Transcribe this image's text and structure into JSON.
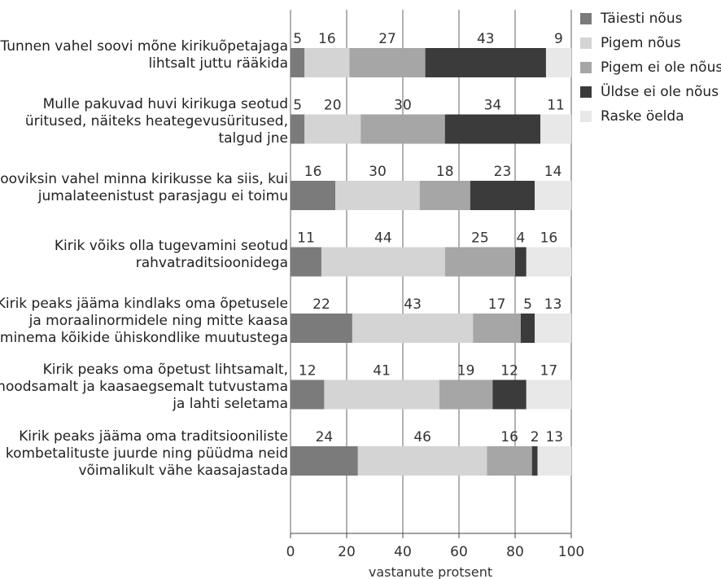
{
  "chart_data": {
    "type": "bar",
    "orientation": "horizontal",
    "stacked": true,
    "categories": [
      "Tunnen vahel soovi mõne kirikuõpetajaga\nlihtsalt juttu rääkida",
      "Mulle pakuvad huvi kirikuga seotud\nüritused, näiteks heategevusüritused,\ntalgud jne",
      "Sooviksin vahel minna kirikusse ka siis, kui\njumalateenistust parasjagu ei toimu",
      "Kirik võiks olla tugevamini seotud\nrahvatraditsioonidega",
      "Kirik peaks jääma kindlaks oma õpetusele\nja moraalinormidele ning mitte kaasa\nminema kõikide ühiskondlike muutustega",
      "Kirik peaks oma õpetust lihtsamalt,\nmoodsamalt ja kaasaegsemalt tutvustama\nja lahti seletama",
      "Kirik peaks jääma oma traditsiooniliste\nkombetalituste juurde ning püüdma neid\nvõimalikult vähe kaasajastada"
    ],
    "series": [
      {
        "name": "Täiesti nõus",
        "color": "#7b7b7b",
        "values": [
          5,
          5,
          16,
          11,
          22,
          12,
          24
        ]
      },
      {
        "name": "Pigem nõus",
        "color": "#d4d4d4",
        "values": [
          16,
          20,
          30,
          44,
          43,
          41,
          46
        ]
      },
      {
        "name": "Pigem ei ole nõus",
        "color": "#a6a6a6",
        "values": [
          27,
          30,
          18,
          25,
          17,
          19,
          16
        ]
      },
      {
        "name": "Üldse ei ole nõus",
        "color": "#3b3b3b",
        "values": [
          43,
          34,
          23,
          4,
          5,
          12,
          2
        ]
      },
      {
        "name": "Raske öelda",
        "color": "#e8e8e8",
        "values": [
          9,
          11,
          14,
          16,
          13,
          17,
          13
        ]
      }
    ],
    "xlabel": "vastanute protsent",
    "xlim": [
      0,
      100
    ],
    "xticks": [
      0,
      20,
      40,
      60,
      80,
      100
    ],
    "grid": true,
    "legend_position": "top-right",
    "data_labels": true
  }
}
